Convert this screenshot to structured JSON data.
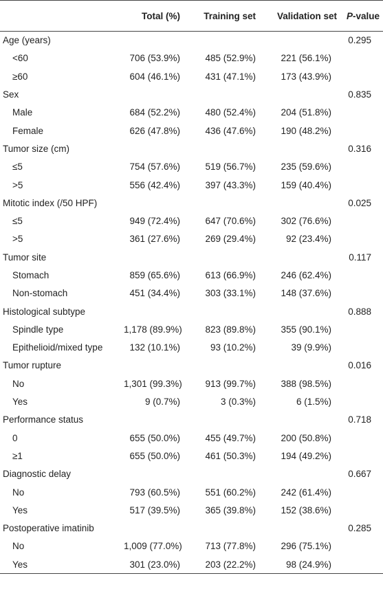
{
  "table": {
    "header": {
      "columns": [
        "Total (%)",
        "Training set",
        "Validation set"
      ],
      "p_value": {
        "italic": "P",
        "text": "-value"
      }
    },
    "groups": [
      {
        "label": "Age (years)",
        "p_value": "0.295",
        "rows": [
          {
            "label": "<60",
            "total": "706 (53.9%)",
            "training": "485 (52.9%)",
            "validation": "221 (56.1%)"
          },
          {
            "label": "≥60",
            "total": "604 (46.1%)",
            "training": "431 (47.1%)",
            "validation": "173 (43.9%)"
          }
        ]
      },
      {
        "label": "Sex",
        "p_value": "0.835",
        "rows": [
          {
            "label": "Male",
            "total": "684 (52.2%)",
            "training": "480 (52.4%)",
            "validation": "204 (51.8%)"
          },
          {
            "label": "Female",
            "total": "626 (47.8%)",
            "training": "436 (47.6%)",
            "validation": "190 (48.2%)"
          }
        ]
      },
      {
        "label": "Tumor size (cm)",
        "p_value": "0.316",
        "rows": [
          {
            "label": "≤5",
            "total": "754 (57.6%)",
            "training": "519 (56.7%)",
            "validation": "235 (59.6%)"
          },
          {
            "label": ">5",
            "total": "556 (42.4%)",
            "training": "397 (43.3%)",
            "validation": "159 (40.4%)"
          }
        ]
      },
      {
        "label": "Mitotic index (/50 HPF)",
        "p_value": "0.025",
        "rows": [
          {
            "label": "≤5",
            "total": "949 (72.4%)",
            "training": "647 (70.6%)",
            "validation": "302 (76.6%)"
          },
          {
            "label": ">5",
            "total": "361 (27.6%)",
            "training": "269 (29.4%)",
            "validation": "92 (23.4%)"
          }
        ]
      },
      {
        "label": "Tumor site",
        "p_value": "0.117",
        "rows": [
          {
            "label": "Stomach",
            "total": "859 (65.6%)",
            "training": "613 (66.9%)",
            "validation": "246 (62.4%)"
          },
          {
            "label": "Non-stomach",
            "total": "451 (34.4%)",
            "training": "303 (33.1%)",
            "validation": "148 (37.6%)"
          }
        ]
      },
      {
        "label": "Histological subtype",
        "p_value": "0.888",
        "rows": [
          {
            "label": "Spindle type",
            "total": "1,178 (89.9%)",
            "training": "823 (89.8%)",
            "validation": "355 (90.1%)"
          },
          {
            "label": "Epithelioid/mixed type",
            "total": "132 (10.1%)",
            "training": "93 (10.2%)",
            "validation": "39 (9.9%)"
          }
        ]
      },
      {
        "label": "Tumor rupture",
        "p_value": "0.016",
        "rows": [
          {
            "label": "No",
            "total": "1,301 (99.3%)",
            "training": "913 (99.7%)",
            "validation": "388 (98.5%)"
          },
          {
            "label": "Yes",
            "total": "9 (0.7%)",
            "training": "3 (0.3%)",
            "validation": "6 (1.5%)"
          }
        ]
      },
      {
        "label": "Performance status",
        "p_value": "0.718",
        "rows": [
          {
            "label": "0",
            "total": "655 (50.0%)",
            "training": "455 (49.7%)",
            "validation": "200 (50.8%)"
          },
          {
            "label": "≥1",
            "total": "655 (50.0%)",
            "training": "461 (50.3%)",
            "validation": "194 (49.2%)"
          }
        ]
      },
      {
        "label": "Diagnostic delay",
        "p_value": "0.667",
        "rows": [
          {
            "label": "No",
            "total": "793 (60.5%)",
            "training": "551 (60.2%)",
            "validation": "242 (61.4%)"
          },
          {
            "label": "Yes",
            "total": "517 (39.5%)",
            "training": "365 (39.8%)",
            "validation": "152 (38.6%)"
          }
        ]
      },
      {
        "label": "Postoperative imatinib",
        "p_value": "0.285",
        "rows": [
          {
            "label": "No",
            "total": "1,009 (77.0%)",
            "training": "713 (77.8%)",
            "validation": "296 (75.1%)"
          },
          {
            "label": "Yes",
            "total": "301 (23.0%)",
            "training": "203 (22.2%)",
            "validation": "98 (24.9%)"
          }
        ]
      }
    ]
  }
}
